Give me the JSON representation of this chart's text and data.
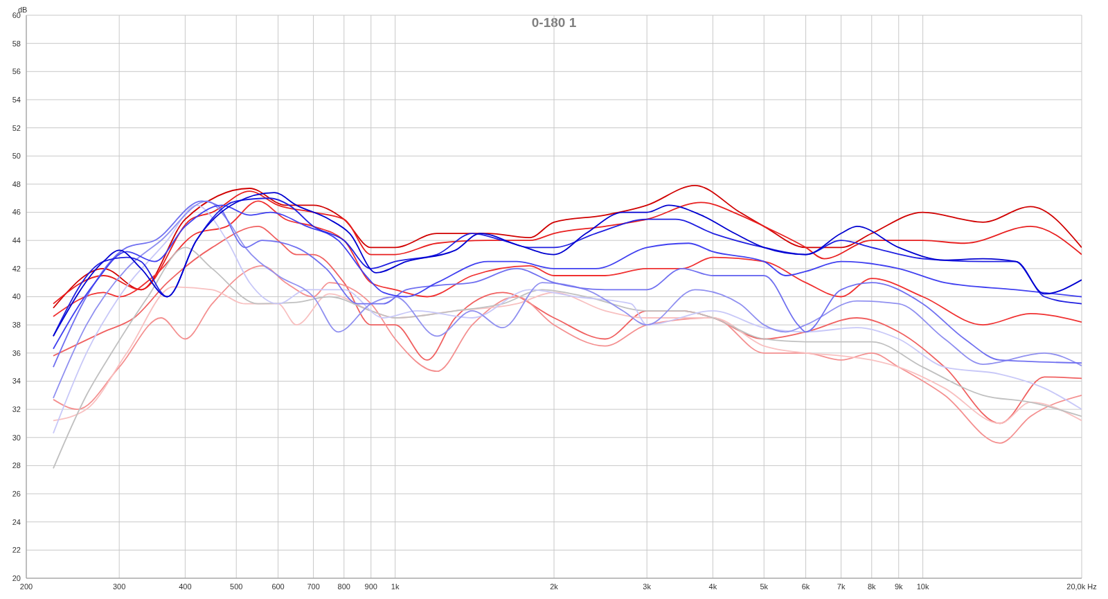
{
  "chart_data": {
    "type": "line",
    "title": "0-180 1",
    "ylabel": "dB",
    "log": "x",
    "grid": true,
    "marker": "none",
    "xlim": [
      200,
      20000
    ],
    "xticks": [
      200,
      300,
      400,
      500,
      600,
      700,
      800,
      900,
      {
        "value": 1000,
        "label": "1k"
      },
      {
        "value": 2000,
        "label": "2k"
      },
      {
        "value": 3000,
        "label": "3k"
      },
      {
        "value": 4000,
        "label": "4k"
      },
      {
        "value": 5000,
        "label": "5k"
      },
      {
        "value": 6000,
        "label": "6k"
      },
      {
        "value": 7000,
        "label": "7k"
      },
      {
        "value": 8000,
        "label": "8k"
      },
      {
        "value": 9000,
        "label": "9k"
      },
      {
        "value": 10000,
        "label": "10k"
      },
      {
        "value": 20000,
        "label": "20,0k Hz"
      }
    ],
    "ylim": [
      20,
      60
    ],
    "yticks": [
      20,
      22,
      24,
      26,
      28,
      30,
      32,
      34,
      36,
      38,
      40,
      42,
      44,
      46,
      48,
      50,
      52,
      54,
      56,
      58,
      60
    ],
    "series": [
      {
        "color": "#d00000",
        "x": [
          225,
          280,
          330,
          400,
          530,
          620,
          700,
          800,
          900,
          1000,
          1200,
          1500,
          1800,
          2000,
          2500,
          3000,
          3700,
          4500,
          5000,
          6000,
          7000,
          8000,
          10000,
          13000,
          16000,
          20000
        ],
        "values": [
          39.2,
          42,
          40.5,
          45.5,
          47.7,
          46.5,
          46.5,
          45.5,
          43.5,
          43.5,
          44.5,
          44.5,
          44.2,
          45.3,
          45.8,
          46.5,
          47.9,
          46,
          45,
          43.5,
          43.5,
          44.5,
          46,
          45.3,
          46.4,
          43.5
        ]
      },
      {
        "color": "#e82020",
        "x": [
          225,
          280,
          330,
          410,
          450,
          530,
          600,
          700,
          800,
          900,
          1000,
          1200,
          1500,
          1800,
          2000,
          2500,
          3000,
          3800,
          4500,
          5000,
          6000,
          6500,
          8000,
          10000,
          12000,
          16000,
          20000
        ],
        "values": [
          39.5,
          41.5,
          40.5,
          45.5,
          46,
          47.5,
          46.5,
          46,
          45.5,
          43,
          43,
          43.8,
          44,
          44,
          44.5,
          45,
          45.5,
          46.7,
          45.8,
          45,
          43.5,
          42.7,
          44,
          44,
          43.8,
          45,
          43
        ]
      },
      {
        "color": "#f03030",
        "x": [
          225,
          280,
          300,
          350,
          420,
          480,
          550,
          620,
          700,
          800,
          900,
          1000,
          1150,
          1400,
          1800,
          2000,
          2500,
          3000,
          3500,
          4000,
          5000,
          6000,
          7000,
          8000,
          10000,
          13000,
          16000,
          20000
        ],
        "values": [
          38.6,
          40.3,
          40,
          41.5,
          44.5,
          45,
          46.8,
          45.5,
          45,
          44,
          41,
          40.5,
          40,
          41.5,
          42.2,
          41.5,
          41.5,
          42,
          42,
          42.8,
          42.5,
          41,
          40,
          41.3,
          40,
          38,
          38.8,
          38.2
        ]
      },
      {
        "color": "#f06060",
        "x": [
          225,
          280,
          320,
          370,
          450,
          550,
          600,
          650,
          700,
          800,
          900,
          1000,
          1150,
          1300,
          1600,
          2000,
          2500,
          3000,
          3500,
          4000,
          5000,
          6000,
          7500,
          9000,
          11000,
          14000,
          17000,
          20000
        ],
        "values": [
          35.8,
          37.5,
          38.5,
          41,
          43.5,
          45,
          44,
          43,
          43,
          41,
          38,
          38,
          35.5,
          38.5,
          40.3,
          38.5,
          37,
          39,
          39,
          38.5,
          37,
          37.5,
          38.5,
          37.5,
          35,
          31,
          34.3,
          34.2
        ]
      },
      {
        "color": "#f49090",
        "x": [
          225,
          250,
          300,
          360,
          400,
          450,
          560,
          620,
          700,
          750,
          900,
          1000,
          1200,
          1400,
          1700,
          2000,
          2500,
          3000,
          4000,
          5000,
          6000,
          7000,
          8000,
          9000,
          11000,
          14000,
          16000,
          20000
        ],
        "values": [
          32.7,
          32,
          35,
          38.5,
          37,
          39.5,
          42.2,
          41,
          40,
          41,
          39.5,
          37,
          34.7,
          38,
          40,
          38,
          36.5,
          38,
          38.5,
          36,
          36,
          35.5,
          36,
          35,
          33,
          29.6,
          31.5,
          33
        ]
      },
      {
        "color": "#f8c0c0",
        "x": [
          225,
          260,
          310,
          380,
          450,
          520,
          600,
          650,
          750,
          900,
          1000,
          1300,
          1700,
          2000,
          2500,
          3000,
          4000,
          5000,
          6000,
          7000,
          8000,
          9000,
          11000,
          14000,
          16000,
          20000
        ],
        "values": [
          31.2,
          32,
          36,
          40.7,
          40.5,
          39.5,
          39.5,
          38,
          40.2,
          39,
          38.5,
          39,
          39.5,
          40.3,
          39,
          38.5,
          38.5,
          36.5,
          36,
          35.8,
          35.5,
          35,
          33.5,
          31,
          32.5,
          31.2
        ]
      },
      {
        "color": "#c0c0c0",
        "x": [
          225,
          260,
          290,
          340,
          400,
          450,
          550,
          650,
          750,
          900,
          1000,
          1300,
          1600,
          1900,
          2300,
          3000,
          3500,
          4000,
          5000,
          6000,
          8000,
          10000,
          13000,
          16000,
          20000
        ],
        "values": [
          27.8,
          33,
          36,
          40,
          43.5,
          42,
          39.5,
          39.6,
          40,
          39,
          38.5,
          39,
          39.5,
          40.5,
          40,
          39,
          39,
          38.5,
          37,
          36.8,
          36.8,
          35,
          33,
          32.5,
          31.5
        ]
      },
      {
        "color": "#c8c8f8",
        "x": [
          225,
          260,
          300,
          370,
          420,
          480,
          530,
          600,
          680,
          800,
          950,
          1100,
          1400,
          1800,
          2200,
          2800,
          3000,
          4000,
          5000,
          6000,
          7500,
          9000,
          11000,
          14000,
          17000,
          20000
        ],
        "values": [
          30.3,
          36,
          40,
          44,
          46.5,
          44,
          41,
          39.5,
          40.5,
          40.5,
          38.5,
          39,
          38.5,
          40.5,
          40,
          39.5,
          38,
          39,
          37.8,
          37.5,
          37.8,
          37,
          35,
          34.5,
          33.5,
          32
        ]
      },
      {
        "color": "#9090f0",
        "x": [
          225,
          260,
          310,
          360,
          440,
          480,
          520,
          600,
          700,
          780,
          900,
          1000,
          1200,
          1400,
          1600,
          1900,
          2300,
          2700,
          3000,
          3700,
          4500,
          5000,
          5500,
          6000,
          7500,
          9000,
          11000,
          13000,
          17000,
          20000
        ],
        "values": [
          32.8,
          38,
          42,
          44,
          46.8,
          45.5,
          43.5,
          41.5,
          40,
          37.5,
          39.5,
          40,
          37.2,
          39,
          37.8,
          41,
          40.5,
          39,
          38,
          40.5,
          39.5,
          38,
          37.5,
          38,
          39.7,
          39.5,
          37,
          35.2,
          36,
          35.1
        ]
      },
      {
        "color": "#7070f0",
        "x": [
          225,
          260,
          310,
          350,
          430,
          460,
          520,
          560,
          650,
          740,
          850,
          950,
          1050,
          1200,
          1400,
          1700,
          2000,
          2500,
          3000,
          3500,
          4000,
          5000,
          5800,
          6000,
          7000,
          8000,
          10000,
          12000,
          14000,
          20000
        ],
        "values": [
          35,
          40,
          43.5,
          44,
          46.8,
          46.5,
          43.5,
          44,
          43.5,
          42,
          39.5,
          39.5,
          40.5,
          40.8,
          41,
          42,
          41,
          40.5,
          40.5,
          42,
          41.5,
          41.5,
          38,
          37.5,
          40.5,
          41,
          39.5,
          37,
          35.5,
          35.3
        ]
      },
      {
        "color": "#4040f0",
        "x": [
          225,
          270,
          310,
          350,
          400,
          470,
          530,
          580,
          680,
          780,
          880,
          950,
          1050,
          1200,
          1500,
          1700,
          2000,
          2400,
          3000,
          3600,
          4000,
          5000,
          5500,
          6000,
          7000,
          9000,
          11000,
          15000,
          20000
        ],
        "values": [
          36.3,
          41,
          43.2,
          42.5,
          45,
          46.5,
          45.8,
          46,
          45,
          44,
          41.5,
          40.3,
          40,
          41,
          42.5,
          42.5,
          42,
          42,
          43.5,
          43.8,
          43.2,
          42.5,
          41.5,
          41.8,
          42.5,
          42,
          41,
          40.5,
          40
        ]
      },
      {
        "color": "#2020e0",
        "x": [
          225,
          280,
          310,
          330,
          370,
          420,
          500,
          580,
          630,
          700,
          800,
          900,
          1000,
          1200,
          1400,
          1600,
          1800,
          2000,
          2400,
          3000,
          3400,
          4000,
          5000,
          6000,
          7000,
          8000,
          10000,
          13000,
          15000,
          17000,
          20000
        ],
        "values": [
          37.2,
          42.5,
          42.8,
          42.5,
          40,
          44,
          46.8,
          47,
          46.5,
          45,
          44,
          42,
          42.5,
          43,
          44.5,
          44,
          43.5,
          43.5,
          44.5,
          45.5,
          45.5,
          44.5,
          43.5,
          43,
          44,
          43.5,
          42.7,
          42.5,
          42.5,
          40,
          39.5
        ]
      },
      {
        "color": "#0000d0",
        "x": [
          225,
          280,
          300,
          330,
          370,
          420,
          500,
          590,
          650,
          750,
          820,
          920,
          1050,
          1300,
          1450,
          1700,
          2000,
          2300,
          2700,
          3000,
          3300,
          3800,
          4400,
          5000,
          6000,
          7000,
          7500,
          9000,
          11000,
          13000,
          15000,
          17000,
          20000
        ],
        "values": [
          37.2,
          42.5,
          43.3,
          42,
          40,
          44,
          46.7,
          47.4,
          46.5,
          45.5,
          44.5,
          41.7,
          42.5,
          43.3,
          44.5,
          43.7,
          43,
          44.5,
          46,
          46,
          46.5,
          45.8,
          44.5,
          43.5,
          43,
          44.5,
          45,
          43.5,
          42.6,
          42.7,
          42.5,
          40.2,
          41.2
        ]
      }
    ]
  }
}
